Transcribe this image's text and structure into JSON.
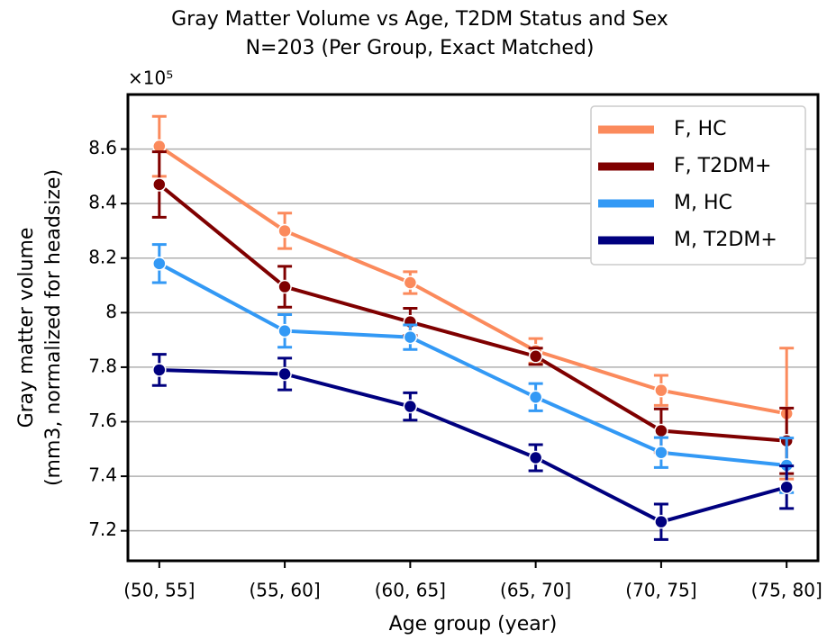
{
  "chart_data": {
    "type": "line",
    "title": "Gray Matter Volume vs Age, T2DM Status and Sex",
    "subtitle": "N=203 (Per Group, Exact Matched)",
    "xlabel": "Age group (year)",
    "ylabel": [
      "Gray matter volume",
      "(mm3, normalized for headsize)"
    ],
    "y_offset_label": "×10⁵",
    "categories": [
      "(50, 55]",
      "(55, 60]",
      "(60, 65]",
      "(65, 70]",
      "(70, 75]",
      "(75, 80]"
    ],
    "ylim": [
      7.09,
      8.8
    ],
    "yticks": [
      7.2,
      7.4,
      7.6,
      7.8,
      8.0,
      8.2,
      8.4,
      8.6
    ],
    "grid": true,
    "legend": "upper right",
    "series": [
      {
        "name": "F, HC",
        "color": "#fb8a5c",
        "values": [
          8.61,
          8.3,
          8.11,
          7.86,
          7.715,
          7.63
        ],
        "errors": [
          0.11,
          0.065,
          0.04,
          0.045,
          0.055,
          0.24
        ]
      },
      {
        "name": "F, T2DM+",
        "color": "#7f0000",
        "values": [
          8.47,
          8.095,
          7.966,
          7.84,
          7.567,
          7.53
        ],
        "errors": [
          0.12,
          0.075,
          0.05,
          0.03,
          0.08,
          0.12
        ]
      },
      {
        "name": "M, HC",
        "color": "#3399f5",
        "values": [
          8.18,
          7.933,
          7.91,
          7.69,
          7.487,
          7.44
        ],
        "errors": [
          0.07,
          0.06,
          0.045,
          0.05,
          0.055,
          0.1
        ]
      },
      {
        "name": "M, T2DM+",
        "color": "#00007f",
        "values": [
          7.79,
          7.775,
          7.656,
          7.468,
          7.233,
          7.36
        ],
        "errors": [
          0.057,
          0.058,
          0.05,
          0.048,
          0.065,
          0.078
        ]
      }
    ]
  }
}
